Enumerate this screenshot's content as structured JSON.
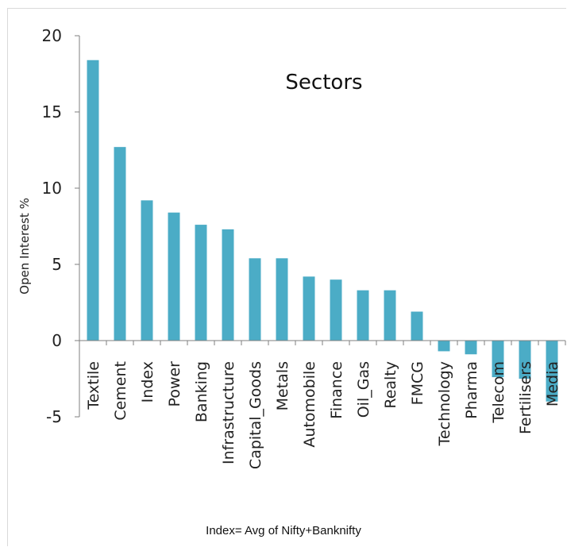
{
  "chart_data": {
    "type": "bar",
    "title": "Sectors",
    "xlabel": "",
    "ylabel": "Open Interest %",
    "ylim": [
      -5,
      20
    ],
    "yticks": [
      20,
      15,
      10,
      5,
      0,
      -5
    ],
    "bar_color": "#4BACC6",
    "categories": [
      "Textile",
      "Cement",
      "Index",
      "Power",
      "Banking",
      "Infrastructure",
      "Capital_Goods",
      "Metals",
      "Automobile",
      "Finance",
      "Oil_Gas",
      "Realty",
      "FMCG",
      "Technology",
      "Pharma",
      "Telecom",
      "Fertilisers",
      "Media"
    ],
    "values": [
      18.4,
      12.7,
      9.2,
      8.4,
      7.6,
      7.3,
      5.4,
      5.4,
      4.2,
      4.0,
      3.3,
      3.3,
      1.9,
      -0.7,
      -0.9,
      -2.4,
      -2.5,
      -4.0
    ],
    "grid": false,
    "legend": "none"
  },
  "footnote": "Index= Avg of Nifty+Banknifty"
}
